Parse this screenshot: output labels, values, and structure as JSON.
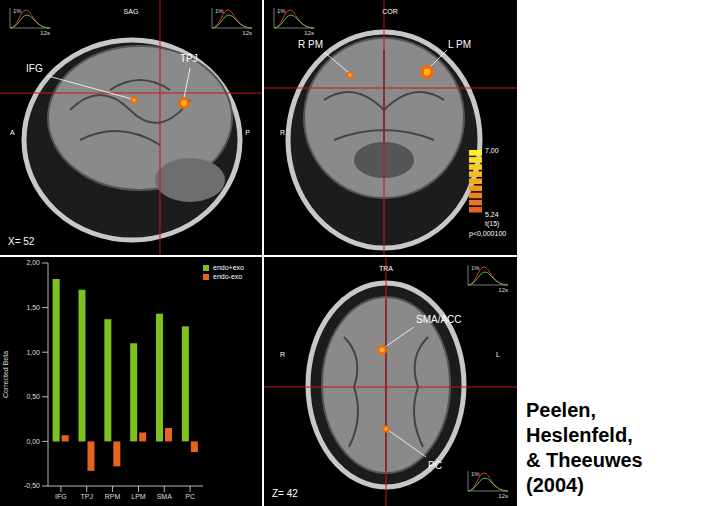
{
  "chart_data": {
    "type": "bar",
    "categories": [
      "IFG",
      "TPJ",
      "RPM",
      "LPM",
      "SMA",
      "PC"
    ],
    "series": [
      {
        "name": "endo+exo",
        "color": "#7dc21e",
        "values": [
          1.82,
          1.7,
          1.37,
          1.1,
          1.43,
          1.29
        ]
      },
      {
        "name": "endo-exo",
        "color": "#e8641e",
        "values": [
          0.07,
          -0.33,
          -0.28,
          0.1,
          0.15,
          -0.12
        ]
      }
    ],
    "y_label": "Corrected Beta",
    "ylim": [
      -0.5,
      2.0
    ],
    "yticks": [
      {
        "value": -0.5,
        "label": "-0,50"
      },
      {
        "value": 0,
        "label": "0,00"
      },
      {
        "value": 0.5,
        "label": "0,50"
      },
      {
        "value": 1.0,
        "label": "1,00"
      },
      {
        "value": 1.5,
        "label": "1,50"
      },
      {
        "value": 2.0,
        "label": "2,00"
      }
    ],
    "grid": false,
    "legend": "upper right"
  },
  "panels": {
    "sagittal": {
      "view": "SAG",
      "labels": [
        "IFG",
        "TPJ"
      ],
      "orientation": [
        "A",
        "P"
      ],
      "slice": "X= 52"
    },
    "coronal": {
      "view": "COR",
      "labels": [
        "R PM",
        "L PM"
      ],
      "orientation": [
        "R"
      ],
      "colorbar": {
        "range": [
          5.24,
          7.0
        ],
        "labels": [
          {
            "value": 7.0,
            "label": "7,00"
          },
          {
            "value": 5.24,
            "label": "5,24"
          }
        ],
        "stat": "t(15)",
        "threshold": "p<0,000100"
      }
    },
    "transverse": {
      "view": "TRA",
      "labels": [
        "SMA/ACC",
        "PC"
      ],
      "orientation": [
        "R",
        "L"
      ],
      "slice": "Z= 42"
    }
  },
  "inset": {
    "scale": "1%",
    "duration": "12s"
  },
  "caption": [
    "Peelen,",
    "Heslenfeld,",
    "& Theeuwes",
    "(2004)"
  ]
}
